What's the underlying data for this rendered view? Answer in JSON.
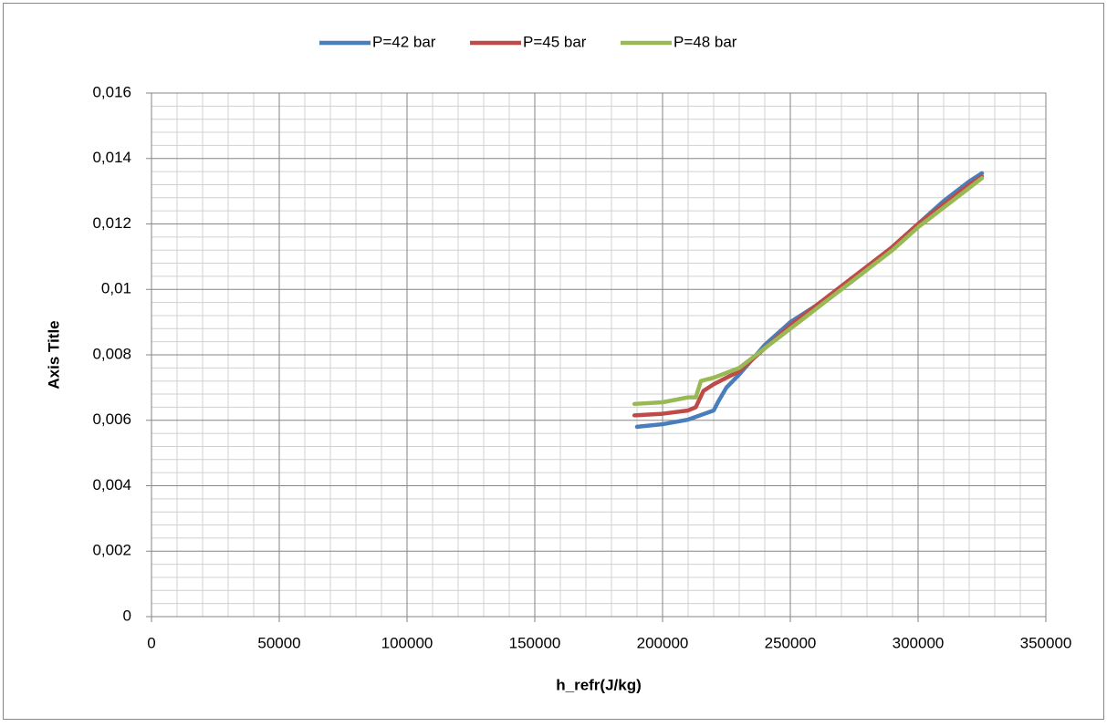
{
  "chart_data": {
    "type": "line",
    "ylabel": "Axis Title",
    "xlabel": "h_refr(J/kg)",
    "xlim": [
      0,
      350000
    ],
    "xticks": [
      0,
      50000,
      100000,
      150000,
      200000,
      250000,
      300000,
      350000
    ],
    "ylim": [
      0,
      0.016
    ],
    "yticks": [
      0,
      {
        "value": 0.002,
        "label": "0,002"
      },
      {
        "value": 0.004,
        "label": "0,004"
      },
      {
        "value": 0.006,
        "label": "0,006"
      },
      {
        "value": 0.008,
        "label": "0,008"
      },
      {
        "value": 0.01,
        "label": "0,01"
      },
      {
        "value": 0.012,
        "label": "0,012"
      },
      {
        "value": 0.014,
        "label": "0,014"
      },
      {
        "value": 0.016,
        "label": "0,016"
      }
    ],
    "grid": true,
    "legend": "top",
    "series": [
      {
        "name": "P=42 bar",
        "color": "#4a7ebb",
        "x": [
          190000,
          200000,
          210000,
          220000,
          222000,
          225000,
          230000,
          240000,
          250000,
          260000,
          270000,
          280000,
          290000,
          300000,
          310000,
          320000,
          325000
        ],
        "values": [
          0.0058,
          0.00588,
          0.00602,
          0.0063,
          0.0066,
          0.007,
          0.0074,
          0.0083,
          0.009,
          0.0095,
          0.01,
          0.0106,
          0.0113,
          0.012,
          0.0127,
          0.0133,
          0.01355
        ]
      },
      {
        "name": "P=45 bar",
        "color": "#be4b48",
        "x": [
          189000,
          200000,
          210000,
          213000,
          216000,
          220000,
          230000,
          240000,
          250000,
          260000,
          270000,
          280000,
          290000,
          300000,
          310000,
          320000,
          325000
        ],
        "values": [
          0.00615,
          0.0062,
          0.0063,
          0.0064,
          0.0069,
          0.0071,
          0.0075,
          0.0082,
          0.0089,
          0.0095,
          0.0101,
          0.0107,
          0.0113,
          0.012,
          0.0126,
          0.0132,
          0.01345
        ]
      },
      {
        "name": "P=48 bar",
        "color": "#98b954",
        "x": [
          189000,
          200000,
          210000,
          213000,
          215000,
          220000,
          230000,
          240000,
          250000,
          260000,
          270000,
          280000,
          290000,
          300000,
          310000,
          320000,
          325000
        ],
        "values": [
          0.0065,
          0.00655,
          0.0067,
          0.0067,
          0.0072,
          0.0073,
          0.0076,
          0.0082,
          0.0088,
          0.0094,
          0.01,
          0.0106,
          0.0112,
          0.0119,
          0.0125,
          0.0131,
          0.0134
        ]
      }
    ]
  }
}
